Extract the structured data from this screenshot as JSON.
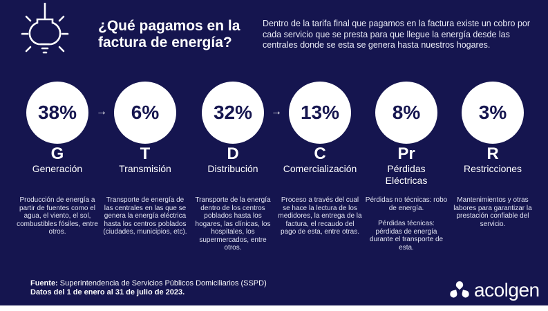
{
  "header": {
    "title_line1": "¿Qué pagamos en la",
    "title_line2": "factura de energía?",
    "intro": "Dentro de la tarifa final que pagamos en la factura existe un cobro por cada servicio que se presta para que llegue la energía desde las centrales donde se esta se genera hasta nuestros hogares."
  },
  "icons": {
    "bulb": "lightbulb-icon",
    "arrow": "arrow-right-icon",
    "logo": "acolgen-logo-icon"
  },
  "arrow_glyph": "→",
  "components": [
    {
      "percent": "38%",
      "value": 38,
      "letter": "G",
      "name": "Generación",
      "description": [
        "Producción de energía a partir de fuentes como el agua, el viento, el sol, combustibles fósiles, entre otros."
      ]
    },
    {
      "percent": "6%",
      "value": 6,
      "letter": "T",
      "name": "Transmisión",
      "description": [
        "Transporte de energía de las centrales en las que se genera la energía eléctrica hasta los centros poblados (ciudades, municipios, etc)."
      ]
    },
    {
      "percent": "32%",
      "value": 32,
      "letter": "D",
      "name": "Distribución",
      "description": [
        "Transporte de la energía dentro de los centros poblados hasta los hogares, las clínicas, los hospitales, los supermercados, entre otros."
      ]
    },
    {
      "percent": "13%",
      "value": 13,
      "letter": "C",
      "name": "Comercialización",
      "description": [
        "Proceso a través del cual se hace la lectura de los medidores, la entrega de la factura, el recaudo del pago de esta, entre otras."
      ]
    },
    {
      "percent": "8%",
      "value": 8,
      "letter": "Pr",
      "name_line1": "Pérdidas",
      "name_line2": "Eléctricas",
      "description": [
        "Pérdidas no técnicas: robo de energía.",
        "Pérdidas técnicas: pérdidas de energía durante el transporte de esta."
      ]
    },
    {
      "percent": "3%",
      "value": 3,
      "letter": "R",
      "name": "Restricciones",
      "description": [
        "Mantenimientos y otras labores para garantizar la prestación confiable del servicio."
      ]
    }
  ],
  "footer": {
    "source_label": "Fuente:",
    "source_text": " Superintendencia de Servicios Públicos Domiciliarios (SSPD)",
    "dates": "Datos del 1 de enero al 31 de julio de 2023."
  },
  "brand": {
    "name": "acolgen"
  },
  "colors": {
    "background": "#15154f",
    "circle": "#ffffff",
    "text": "#ffffff"
  }
}
